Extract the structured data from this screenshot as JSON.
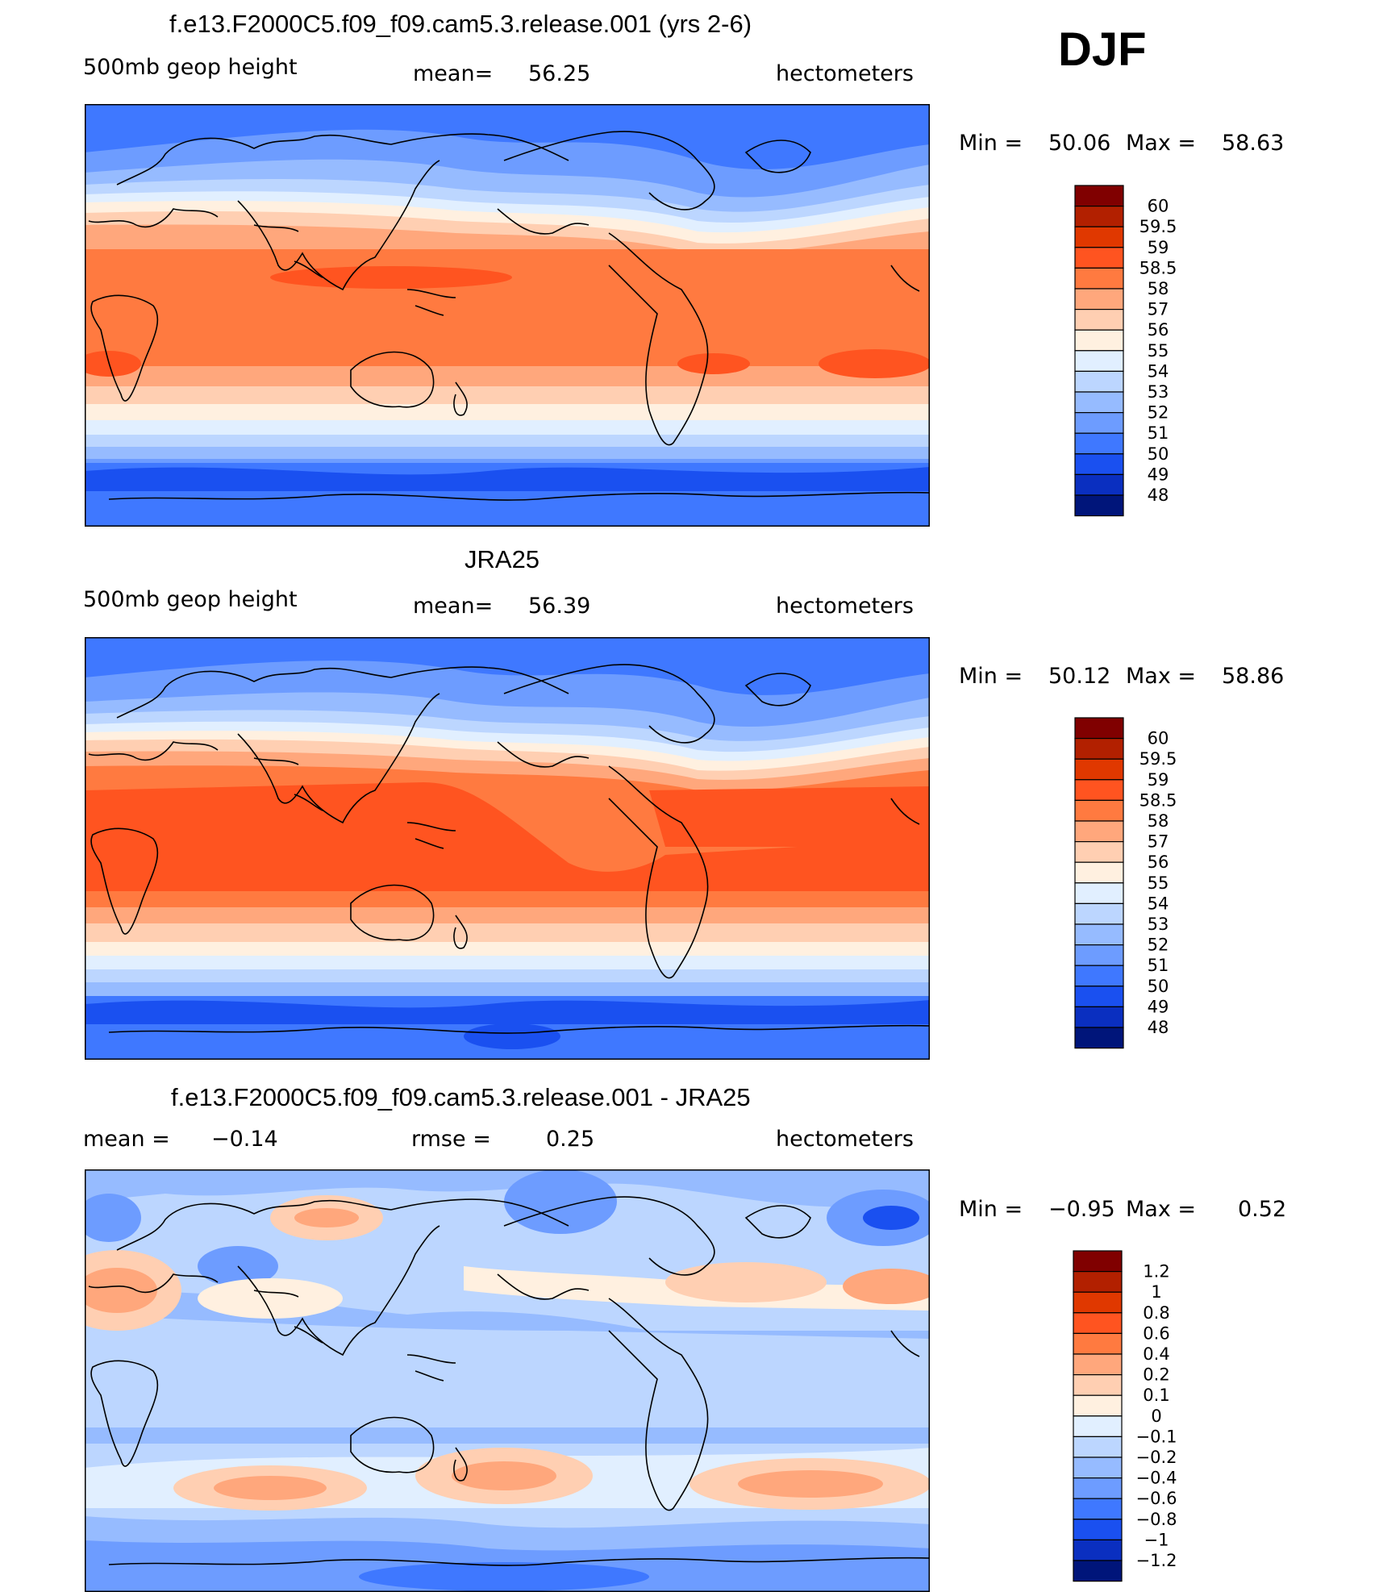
{
  "season": "DJF",
  "panels": [
    {
      "id": "model",
      "title": "f.e13.F2000C5.f09_f09.cam5.3.release.001 (yrs 2-6)",
      "left": "500mb geop height",
      "center_label": "mean=",
      "center_value": "56.25",
      "right": "hectometers",
      "min_label": "Min =",
      "min_value": "50.06",
      "max_label": "Max =",
      "max_value": "58.63",
      "colorbar_labels": [
        "60",
        "59.5",
        "59",
        "58.5",
        "58",
        "57",
        "56",
        "55",
        "54",
        "53",
        "52",
        "51",
        "50",
        "49",
        "48"
      ]
    },
    {
      "id": "obs",
      "title": "JRA25",
      "left": "500mb geop height",
      "center_label": "mean=",
      "center_value": "56.39",
      "right": "hectometers",
      "min_label": "Min =",
      "min_value": "50.12",
      "max_label": "Max =",
      "max_value": "58.86",
      "colorbar_labels": [
        "60",
        "59.5",
        "59",
        "58.5",
        "58",
        "57",
        "56",
        "55",
        "54",
        "53",
        "52",
        "51",
        "50",
        "49",
        "48"
      ]
    },
    {
      "id": "diff",
      "title": "f.e13.F2000C5.f09_f09.cam5.3.release.001 - JRA25",
      "left_label": "mean =",
      "left_value": "−0.14",
      "center_label": "rmse =",
      "center_value": "0.25",
      "right": "hectometers",
      "min_label": "Min =",
      "min_value": "−0.95",
      "max_label": "Max =",
      "max_value": "0.52",
      "colorbar_labels": [
        "1.2",
        "1",
        "0.8",
        "0.6",
        "0.4",
        "0.2",
        "0.1",
        "0",
        "−0.1",
        "−0.2",
        "−0.4",
        "−0.6",
        "−0.8",
        "−1",
        "−1.2"
      ]
    }
  ],
  "colors": {
    "colorbar": [
      "#800000",
      "#b22000",
      "#e03800",
      "#ff5420",
      "#ff7a40",
      "#ffa77c",
      "#ffcfb2",
      "#fff0e0",
      "#e1efff",
      "#bcd6ff",
      "#96bbff",
      "#6d9cff",
      "#3f78ff",
      "#1a50f0",
      "#0a2fc0",
      "#00157a"
    ],
    "coast": "#000000",
    "frame": "#000000"
  }
}
